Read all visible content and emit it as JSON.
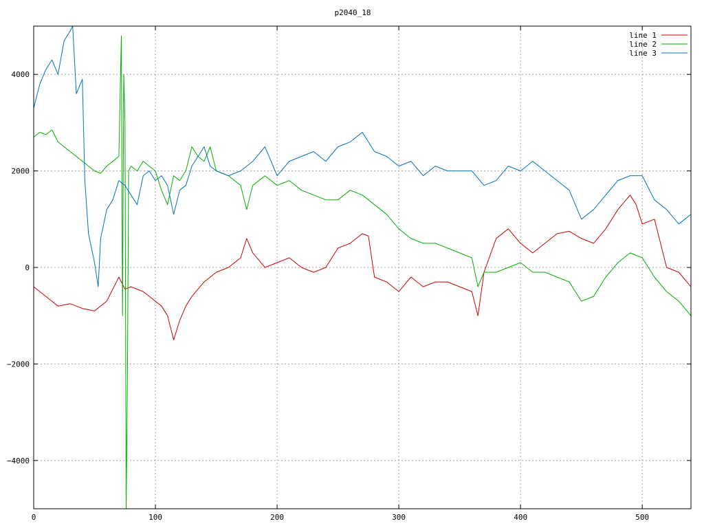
{
  "chart_data": {
    "type": "line",
    "title": "p2040_18",
    "xlabel": "",
    "ylabel": "",
    "xlim": [
      0,
      540
    ],
    "ylim": [
      -5000,
      5000
    ],
    "x_ticks": [
      0,
      100,
      200,
      300,
      400,
      500
    ],
    "y_ticks": [
      -4000,
      -2000,
      0,
      2000,
      4000
    ],
    "grid": true,
    "legend_position": "top-right",
    "series": [
      {
        "name": "line 1",
        "color": "#cc0000",
        "x": [
          0,
          10,
          20,
          30,
          40,
          50,
          60,
          70,
          75,
          80,
          90,
          100,
          105,
          110,
          115,
          120,
          125,
          130,
          140,
          150,
          160,
          170,
          175,
          180,
          190,
          200,
          210,
          220,
          230,
          240,
          250,
          260,
          270,
          275,
          280,
          290,
          300,
          310,
          320,
          330,
          340,
          350,
          360,
          365,
          370,
          380,
          390,
          400,
          410,
          420,
          430,
          440,
          450,
          460,
          470,
          480,
          490,
          495,
          500,
          510,
          520,
          530,
          540
        ],
        "y": [
          -400,
          -600,
          -800,
          -750,
          -850,
          -900,
          -700,
          -200,
          -450,
          -400,
          -500,
          -700,
          -800,
          -1000,
          -1500,
          -1100,
          -800,
          -600,
          -300,
          -100,
          0,
          200,
          600,
          300,
          0,
          100,
          200,
          0,
          -100,
          0,
          400,
          500,
          700,
          650,
          -200,
          -300,
          -500,
          -200,
          -400,
          -300,
          -300,
          -400,
          -500,
          -1000,
          -100,
          600,
          800,
          500,
          300,
          500,
          700,
          750,
          600,
          500,
          800,
          1200,
          1500,
          1300,
          900,
          1000,
          0,
          -100,
          -400
        ]
      },
      {
        "name": "line 2",
        "color": "#00b000",
        "x": [
          0,
          5,
          10,
          15,
          20,
          25,
          30,
          35,
          40,
          45,
          50,
          55,
          60,
          65,
          70,
          72,
          73,
          74,
          75,
          76,
          77,
          78,
          80,
          85,
          90,
          95,
          100,
          105,
          110,
          115,
          120,
          125,
          130,
          135,
          140,
          145,
          150,
          160,
          170,
          175,
          180,
          190,
          200,
          210,
          220,
          230,
          240,
          250,
          260,
          270,
          280,
          290,
          300,
          310,
          320,
          330,
          340,
          350,
          360,
          365,
          370,
          380,
          390,
          400,
          410,
          420,
          430,
          440,
          450,
          460,
          470,
          480,
          490,
          500,
          510,
          520,
          530,
          540
        ],
        "y": [
          2700,
          2800,
          2750,
          2850,
          2600,
          2500,
          2400,
          2300,
          2200,
          2100,
          2000,
          1950,
          2100,
          2200,
          2300,
          4800,
          -1000,
          4000,
          3000,
          -5000,
          -2400,
          2000,
          2100,
          2000,
          2200,
          2100,
          2000,
          1600,
          1300,
          1900,
          1800,
          2000,
          2500,
          2300,
          2200,
          2500,
          2000,
          1900,
          1700,
          1200,
          1700,
          1900,
          1700,
          1800,
          1600,
          1500,
          1400,
          1400,
          1600,
          1500,
          1300,
          1100,
          800,
          600,
          500,
          500,
          400,
          300,
          200,
          -400,
          -100,
          -100,
          0,
          100,
          -100,
          -100,
          -200,
          -300,
          -700,
          -600,
          -200,
          100,
          300,
          200,
          -200,
          -500,
          -700,
          -1000
        ]
      },
      {
        "name": "line 3",
        "color": "#0070c0",
        "x": [
          0,
          5,
          10,
          15,
          20,
          25,
          30,
          32,
          35,
          40,
          42,
          45,
          50,
          53,
          55,
          60,
          65,
          70,
          75,
          80,
          85,
          90,
          95,
          100,
          105,
          110,
          115,
          120,
          125,
          130,
          140,
          145,
          150,
          160,
          170,
          180,
          190,
          200,
          210,
          220,
          230,
          240,
          250,
          260,
          270,
          280,
          290,
          300,
          310,
          320,
          330,
          340,
          350,
          360,
          370,
          380,
          390,
          400,
          410,
          420,
          430,
          440,
          450,
          460,
          470,
          480,
          490,
          500,
          510,
          520,
          530,
          540
        ],
        "y": [
          3300,
          3800,
          4100,
          4300,
          4000,
          4700,
          4900,
          5000,
          3600,
          3900,
          1800,
          700,
          100,
          -400,
          600,
          1200,
          1400,
          1800,
          1700,
          1500,
          1300,
          1900,
          2000,
          1800,
          1900,
          1700,
          1100,
          1600,
          1700,
          2100,
          2500,
          2100,
          2000,
          1900,
          2000,
          2200,
          2500,
          1900,
          2200,
          2300,
          2400,
          2200,
          2500,
          2600,
          2800,
          2400,
          2300,
          2100,
          2200,
          1900,
          2100,
          2000,
          2000,
          2000,
          1700,
          1800,
          2100,
          2000,
          2200,
          2000,
          1800,
          1600,
          1000,
          1200,
          1500,
          1800,
          1900,
          1900,
          1400,
          1200,
          900,
          1100
        ]
      }
    ]
  }
}
